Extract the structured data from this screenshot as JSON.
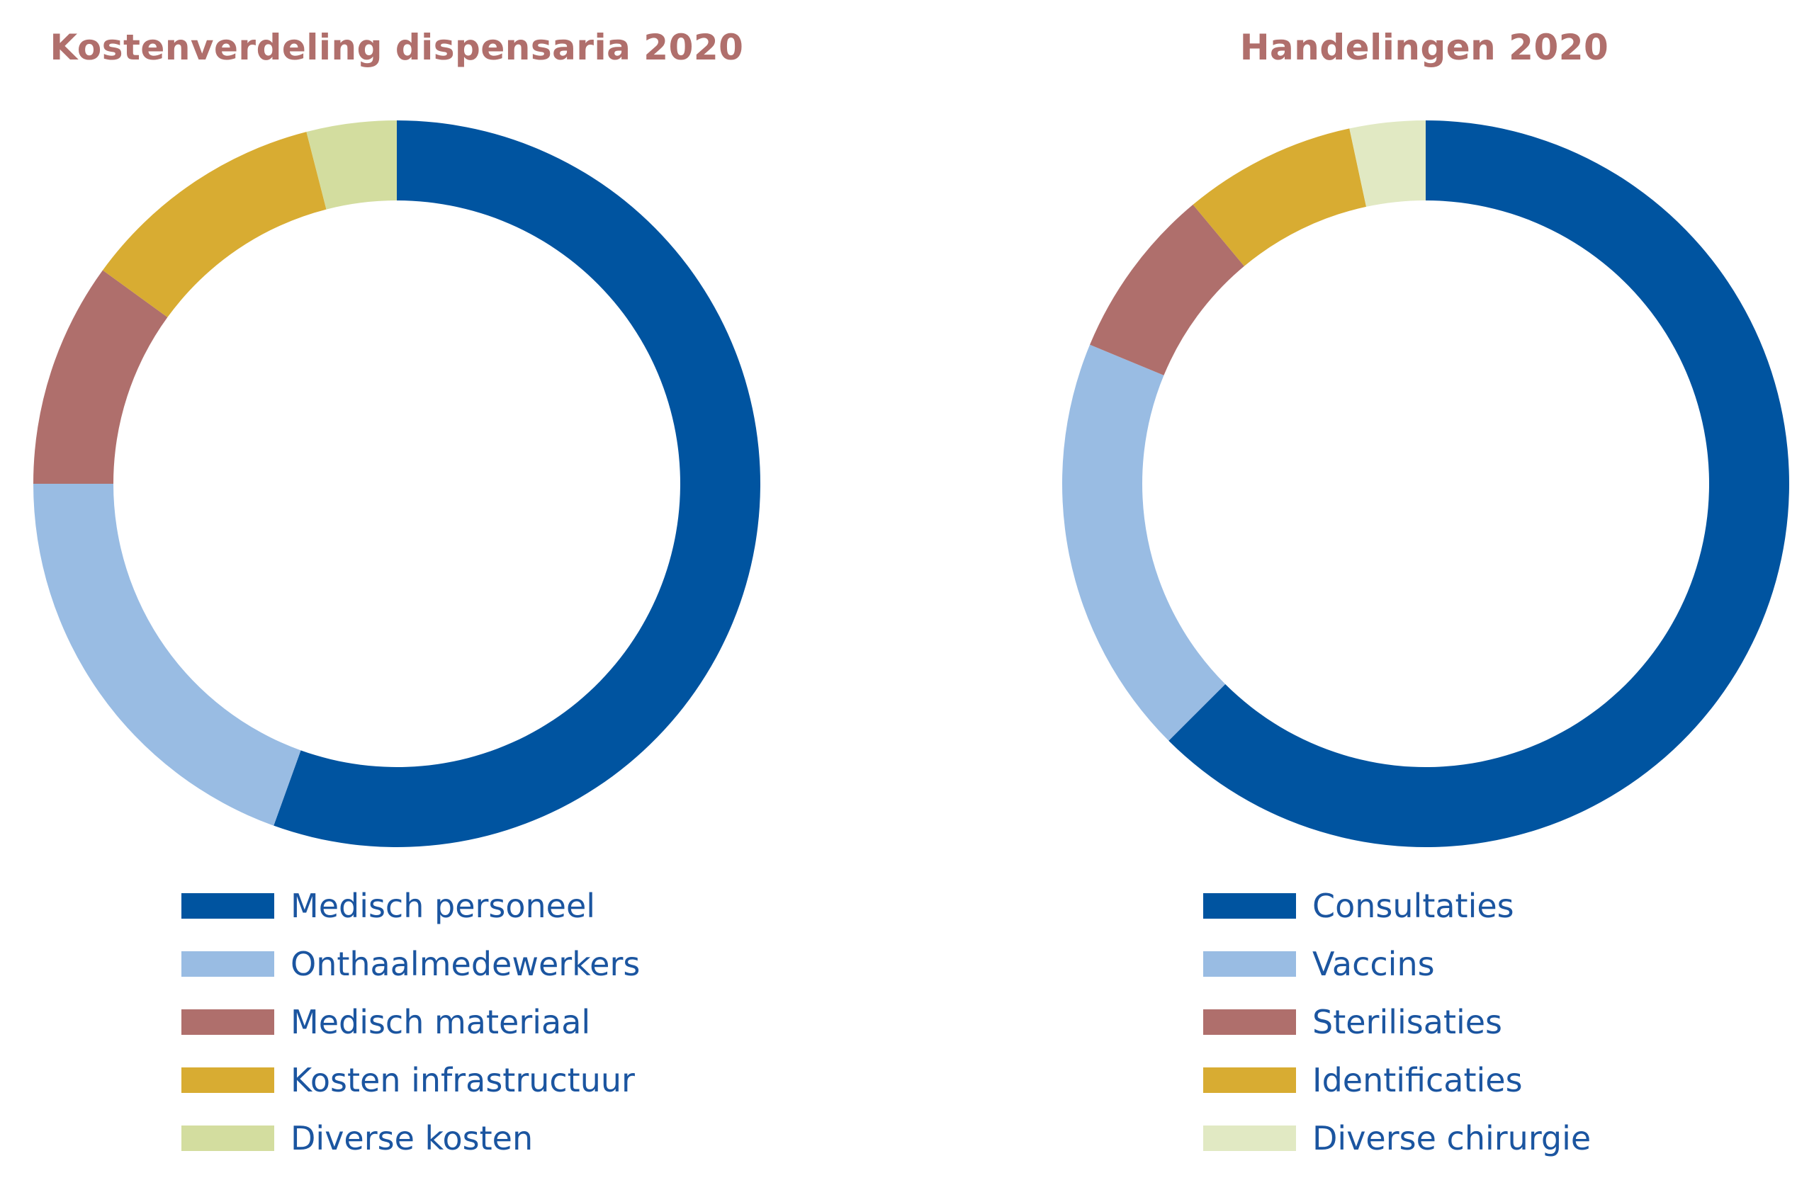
{
  "colors": {
    "title": "#b06f6c",
    "legend_text": "#1b55a0",
    "series": [
      "#0054a0",
      "#99bce3",
      "#af6f6c",
      "#d8ac32",
      "#d3dd9f",
      "#e1e9c3"
    ]
  },
  "chart_data": [
    {
      "type": "pie",
      "variant": "donut",
      "title": "Kostenverdeling dispensaria 2020",
      "legend_position": "bottom",
      "categories": [
        "Medisch personeel",
        "Onthaalmedewerkers",
        "Medisch materiaal",
        "Kosten infrastructuur",
        "Diverse kosten"
      ],
      "values": [
        55.5,
        19.5,
        10.0,
        11.0,
        4.0
      ],
      "unit": "%",
      "colors": [
        "#0054a0",
        "#99bce3",
        "#af6f6c",
        "#d8ac32",
        "#d3dd9f"
      ]
    },
    {
      "type": "pie",
      "variant": "donut",
      "title": "Handelingen 2020",
      "legend_position": "bottom",
      "categories": [
        "Consultaties",
        "Vaccins",
        "Sterilisaties",
        "Identificaties",
        "Diverse chirurgie"
      ],
      "values": [
        65.0,
        19.5,
        8.0,
        8.0,
        3.5
      ],
      "unit": "%",
      "colors": [
        "#0054a0",
        "#99bce3",
        "#af6f6c",
        "#d8ac32",
        "#e1e9c3"
      ]
    }
  ]
}
